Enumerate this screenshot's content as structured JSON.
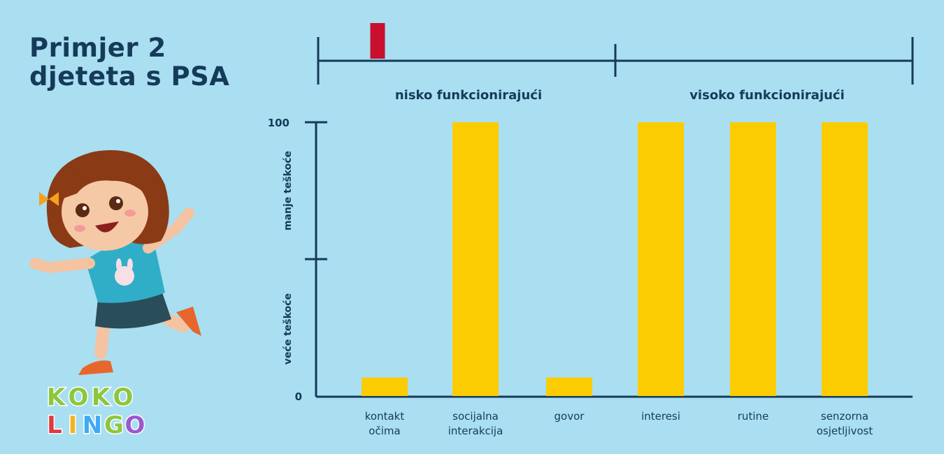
{
  "title": {
    "line1": "Primjer 2",
    "line2": "djeteta s PSA"
  },
  "scale": {
    "left_label": "nisko funkcionirajući",
    "right_label": "visoko funkcionirajući",
    "marker_value": 0.1,
    "marker_color": "#c8102e"
  },
  "logo": {
    "line1": "KOKO",
    "line2": "LINGO"
  },
  "chart_data": {
    "type": "bar",
    "categories": [
      [
        "kontakt",
        "očima"
      ],
      [
        "socijalna",
        "interakcija"
      ],
      [
        "govor"
      ],
      [
        "interesi"
      ],
      [
        "rutine"
      ],
      [
        "senzorna",
        "osjetljivost"
      ]
    ],
    "values": [
      7,
      100,
      7,
      100,
      100,
      100
    ],
    "ylim": [
      0,
      100
    ],
    "yticks": [
      "0",
      "100"
    ],
    "y_region_labels": {
      "upper": "manje teškoće",
      "lower": "veće teškoće"
    },
    "bar_color": "#facc01",
    "grid": false,
    "legend": "none"
  }
}
